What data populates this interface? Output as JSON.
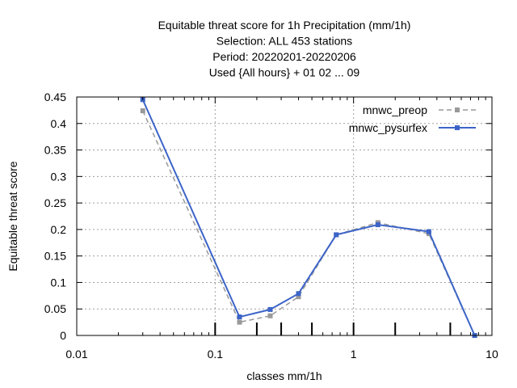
{
  "chart_data": {
    "type": "line",
    "title_lines": [
      "Equitable threat score  for 1h Precipitation (mm/1h)",
      "Selection: ALL    453 stations",
      "Period: 20220201-20220206",
      "Used {All hours} + 01 02 ... 09"
    ],
    "xlabel": "classes mm/1h",
    "ylabel": "Equitable threat score",
    "xscale": "log",
    "xlim": [
      0.01,
      10
    ],
    "ylim": [
      0,
      0.45
    ],
    "xticks": [
      0.01,
      0.1,
      1,
      10
    ],
    "xtick_labels": [
      "0.01",
      "0.1",
      "1",
      "10"
    ],
    "yticks": [
      0,
      0.05,
      0.1,
      0.15,
      0.2,
      0.25,
      0.3,
      0.35,
      0.4,
      0.45
    ],
    "ytick_labels": [
      "0",
      "0.05",
      "0.1",
      "0.15",
      "0.2",
      "0.25",
      "0.3",
      "0.35",
      "0.4",
      "0.45"
    ],
    "class_markers": [
      0.1,
      0.2,
      0.3,
      0.5,
      1,
      2,
      5
    ],
    "grid": true,
    "legend_position": "top-right",
    "series": [
      {
        "name": "mnwc_preop",
        "color": "#999999",
        "style": "dashed",
        "x": [
          0.03,
          0.15,
          0.25,
          0.4,
          0.75,
          1.5,
          3.5,
          7.5
        ],
        "y": [
          0.424,
          0.025,
          0.037,
          0.073,
          0.19,
          0.213,
          0.192,
          0.0
        ]
      },
      {
        "name": "mnwc_pysurfex",
        "color": "#3c64c8",
        "style": "solid",
        "x": [
          0.03,
          0.15,
          0.25,
          0.4,
          0.75,
          1.5,
          3.5,
          7.5
        ],
        "y": [
          0.445,
          0.035,
          0.049,
          0.079,
          0.19,
          0.209,
          0.196,
          0.0
        ]
      }
    ]
  }
}
